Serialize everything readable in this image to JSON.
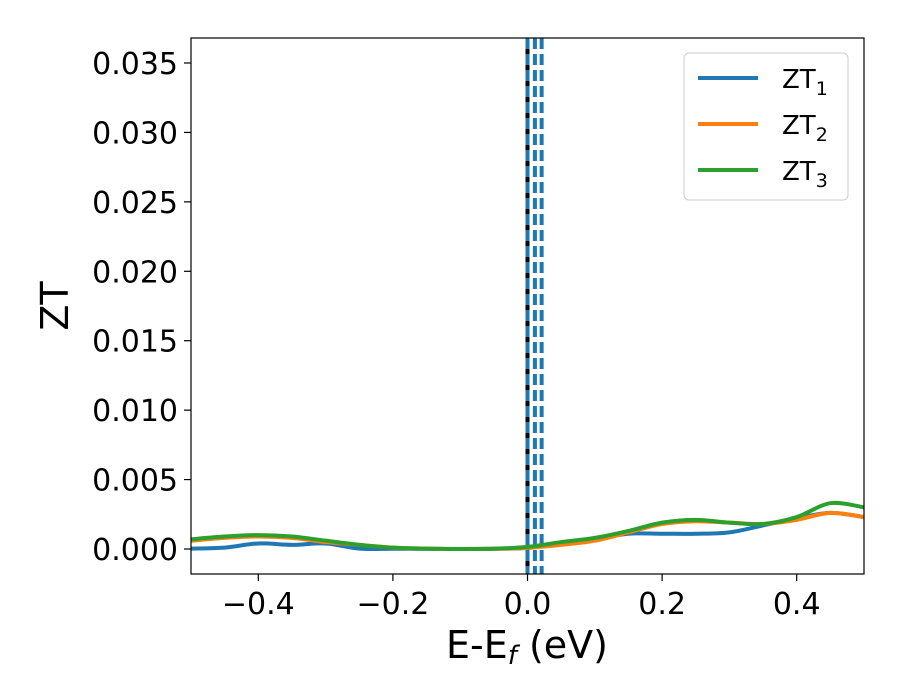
{
  "chart_data": {
    "type": "line",
    "xlabel": "E-E",
    "xlabel_sub": "f",
    "xlabel_unit": " (eV)",
    "ylabel": "ZT",
    "xlim": [
      -0.5,
      0.5
    ],
    "ylim": [
      -0.0018,
      0.0368
    ],
    "x_ticks": [
      -0.4,
      -0.2,
      0.0,
      0.2,
      0.4
    ],
    "x_tick_labels": [
      "−0.4",
      "−0.2",
      "0.0",
      "0.2",
      "0.4"
    ],
    "y_ticks": [
      0.0,
      0.005,
      0.01,
      0.015,
      0.02,
      0.025,
      0.03,
      0.035
    ],
    "y_tick_labels": [
      "0.000",
      "0.005",
      "0.010",
      "0.015",
      "0.020",
      "0.025",
      "0.030",
      "0.035"
    ],
    "grid": false,
    "legend_position": "top-right",
    "vlines": [
      {
        "x": 0.0,
        "color": "#000000",
        "style": "solid"
      },
      {
        "x": 0.0,
        "color": "#1f77b4",
        "style": "dashed"
      },
      {
        "x": 0.011,
        "color": "#1f77b4",
        "style": "dashed"
      },
      {
        "x": 0.021,
        "color": "#1f77b4",
        "style": "dashed"
      }
    ],
    "x": [
      -0.5,
      -0.45,
      -0.4,
      -0.35,
      -0.3,
      -0.25,
      -0.2,
      -0.15,
      -0.1,
      -0.05,
      0.0,
      0.05,
      0.1,
      0.15,
      0.2,
      0.25,
      0.3,
      0.35,
      0.4,
      0.45,
      0.5
    ],
    "series": [
      {
        "name": "ZT",
        "sub": "1",
        "color": "#1f77b4",
        "values": [
          3e-05,
          0.0001,
          0.0004,
          0.0003,
          0.0004,
          3e-05,
          2e-05,
          1e-05,
          0.0,
          2e-05,
          8e-05,
          0.0004,
          0.0007,
          0.0011,
          0.0011,
          0.0011,
          0.0012,
          0.0017,
          0.0022,
          0.0026,
          0.0023
        ]
      },
      {
        "name": "ZT",
        "sub": "2",
        "color": "#ff7f0e",
        "values": [
          0.0006,
          0.0008,
          0.0009,
          0.0008,
          0.0005,
          0.0003,
          0.0001,
          3e-05,
          0.0,
          2e-05,
          8e-05,
          0.0003,
          0.0006,
          0.0012,
          0.0018,
          0.002,
          0.0019,
          0.0018,
          0.0021,
          0.0026,
          0.0023
        ]
      },
      {
        "name": "ZT",
        "sub": "3",
        "color": "#2ca02c",
        "values": [
          0.0007,
          0.0009,
          0.001,
          0.0009,
          0.0006,
          0.0003,
          0.0001,
          3e-05,
          0.0,
          2e-05,
          0.00015,
          0.0005,
          0.0008,
          0.0013,
          0.0019,
          0.0021,
          0.0019,
          0.0018,
          0.0023,
          0.0033,
          0.003
        ]
      }
    ]
  }
}
